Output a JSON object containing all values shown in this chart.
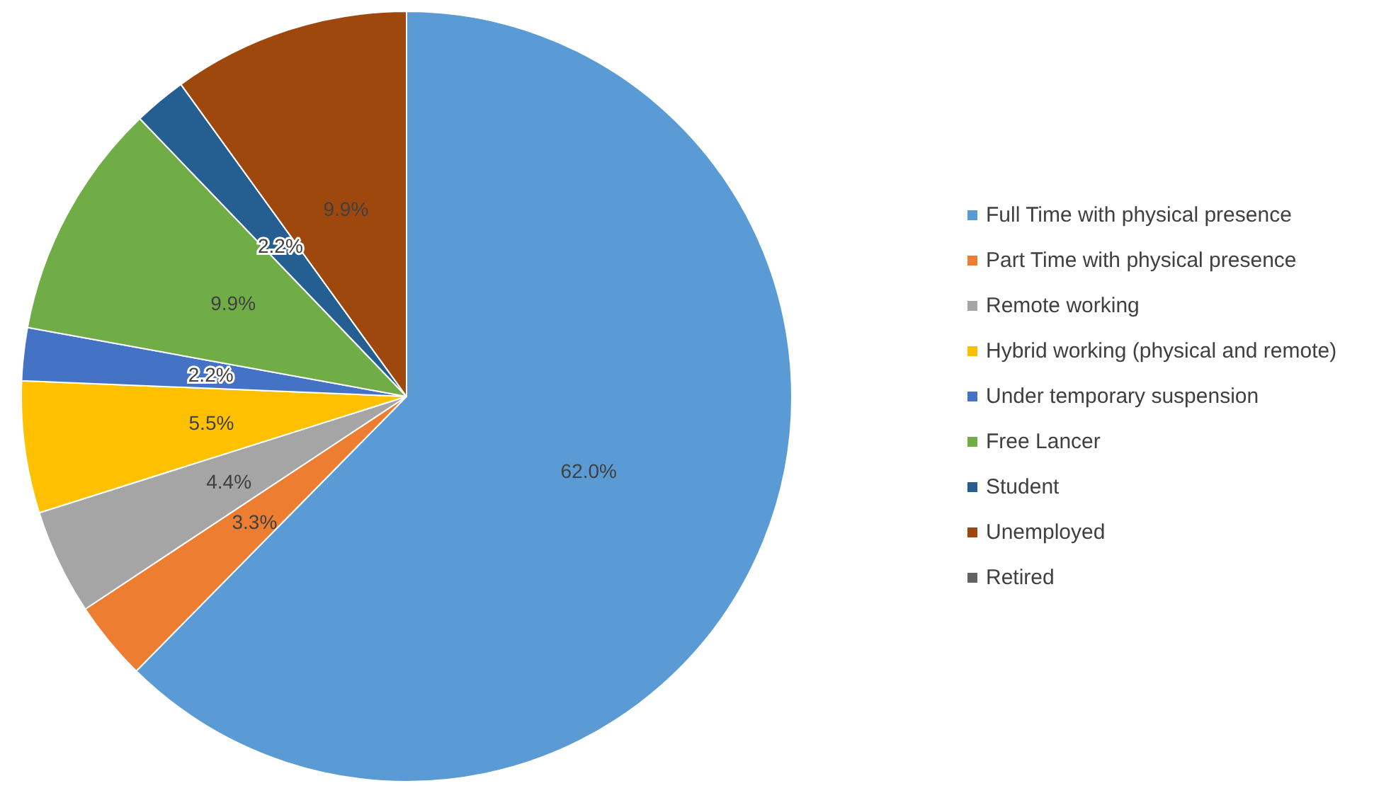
{
  "chart_data": {
    "type": "pie",
    "categories": [
      "Full Time with physical presence",
      "Part Time with physical presence",
      "Remote working",
      "Hybrid working (physical and remote)",
      "Under temporary suspension",
      "Free Lancer",
      "Student",
      "Unemployed",
      "Retired"
    ],
    "values": [
      62.0,
      3.3,
      4.4,
      5.5,
      2.2,
      9.9,
      2.2,
      9.9,
      0
    ],
    "value_labels": [
      "62.0%",
      "3.3%",
      "4.4%",
      "5.5%",
      "2.2%",
      "9.9%",
      "2.2%",
      "9.9%",
      null
    ],
    "colors": [
      "#5b9bd5",
      "#ed7d31",
      "#a5a5a5",
      "#ffc000",
      "#4472c4",
      "#70ad47",
      "#255e91",
      "#9e480e",
      "#636363"
    ],
    "legend": "right"
  }
}
